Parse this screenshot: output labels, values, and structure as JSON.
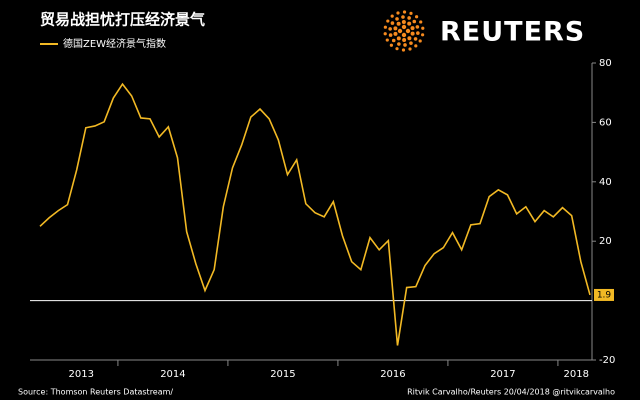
{
  "chart_data": {
    "type": "line",
    "title": "贸易战担忧打压经济景气",
    "brand": "REUTERS",
    "source": "Source: Thomson Reuters Datastream/",
    "credit": "Ritvik Carvalho/Reuters 20/04/2018 @ritvikcarvalho",
    "categories": [
      null,
      null,
      null,
      null,
      "2013",
      null,
      null,
      null,
      null,
      null,
      null,
      null,
      null,
      null,
      "2014",
      null,
      null,
      null,
      null,
      null,
      null,
      null,
      null,
      null,
      null,
      null,
      "2015",
      null,
      null,
      null,
      null,
      null,
      null,
      null,
      null,
      null,
      null,
      null,
      "2016",
      null,
      null,
      null,
      null,
      null,
      null,
      null,
      null,
      null,
      null,
      null,
      "2017",
      null,
      null,
      null,
      null,
      null,
      null,
      null,
      "2018",
      null,
      null
    ],
    "series": [
      {
        "name": "德国ZEW经济景气指数",
        "color": "#f2b924",
        "values": [
          25,
          27.9,
          30.3,
          32.3,
          44,
          58.2,
          58.8,
          60.2,
          68.2,
          72.9,
          68.9,
          61.5,
          61.2,
          55.1,
          58.5,
          48.1,
          23.2,
          12.4,
          3.4,
          10.4,
          31.6,
          44.7,
          52.4,
          61.8,
          64.5,
          61.2,
          54.1,
          42.4,
          47.4,
          32.6,
          29.6,
          28.2,
          33.3,
          21.8,
          13.1,
          10.4,
          21.2,
          17.1,
          20.2,
          -15.1,
          4.4,
          4.7,
          11.8,
          15.8,
          17.8,
          22.9,
          17.1,
          25.5,
          25.9,
          35,
          37.3,
          35.6,
          29.2,
          31.6,
          26.6,
          30.3,
          28.2,
          31.3,
          28.6,
          13.1,
          1.9
        ]
      }
    ],
    "ylim": [
      -20,
      80
    ],
    "yticks": [
      -20,
      20,
      40,
      60,
      80
    ],
    "zero_line": true,
    "y_axis_side": "right",
    "legend": "top-left"
  }
}
